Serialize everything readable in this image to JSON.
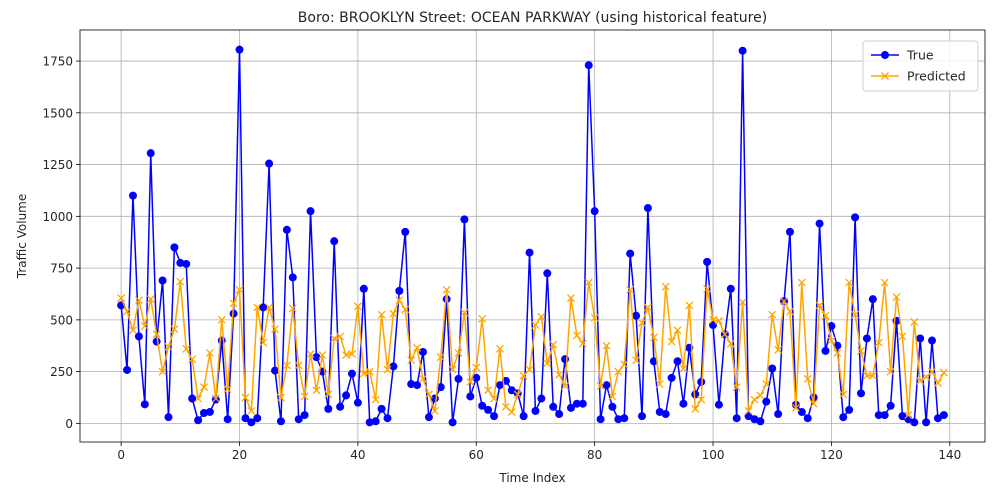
{
  "chart_data": {
    "type": "line",
    "title": "Boro: BROOKLYN Street: OCEAN PARKWAY (using historical feature)",
    "xlabel": "Time Index",
    "ylabel": "Traffic Volume",
    "xlim": [
      -6.95,
      145.95
    ],
    "ylim": [
      -90,
      1900
    ],
    "xticks": [
      0,
      20,
      40,
      60,
      80,
      100,
      120,
      140
    ],
    "yticks": [
      0,
      250,
      500,
      750,
      1000,
      1250,
      1500,
      1750
    ],
    "grid": true,
    "legend_position": "upper-right",
    "series": [
      {
        "name": "True",
        "color": "#0000ff",
        "marker": "circle",
        "values": [
          570,
          258,
          1100,
          420,
          92,
          1305,
          395,
          690,
          30,
          850,
          775,
          770,
          120,
          15,
          50,
          55,
          115,
          400,
          20,
          530,
          1805,
          25,
          5,
          25,
          560,
          1255,
          255,
          10,
          935,
          705,
          20,
          40,
          1025,
          320,
          250,
          70,
          880,
          80,
          135,
          240,
          100,
          650,
          5,
          10,
          70,
          25,
          275,
          640,
          925,
          190,
          185,
          345,
          30,
          120,
          175,
          600,
          5,
          215,
          985,
          130,
          220,
          85,
          65,
          35,
          185,
          205,
          160,
          145,
          35,
          825,
          60,
          120,
          725,
          80,
          45,
          310,
          75,
          95,
          95,
          1730,
          1025,
          20,
          185,
          80,
          20,
          25,
          820,
          520,
          35,
          1040,
          300,
          55,
          45,
          220,
          300,
          95,
          365,
          140,
          200,
          780,
          475,
          90,
          430,
          650,
          25,
          1800,
          35,
          20,
          10,
          105,
          265,
          45,
          590,
          925,
          90,
          55,
          25,
          125,
          965,
          350,
          470,
          375,
          30,
          65,
          995,
          145,
          410,
          600,
          40,
          40,
          85,
          495,
          35,
          20,
          5,
          410,
          5,
          400,
          25,
          40
        ]
      },
      {
        "name": "Predicted",
        "color": "#ffa500",
        "marker": "x",
        "values": [
          605,
          540,
          450,
          595,
          470,
          600,
          430,
          250,
          370,
          455,
          685,
          360,
          310,
          120,
          175,
          340,
          120,
          500,
          165,
          580,
          645,
          125,
          60,
          560,
          390,
          560,
          455,
          125,
          280,
          555,
          280,
          130,
          335,
          160,
          330,
          140,
          410,
          420,
          330,
          335,
          565,
          240,
          250,
          115,
          525,
          260,
          530,
          595,
          550,
          305,
          365,
          215,
          140,
          60,
          320,
          645,
          260,
          340,
          535,
          200,
          270,
          505,
          160,
          120,
          360,
          80,
          55,
          140,
          230,
          260,
          475,
          515,
          290,
          380,
          235,
          180,
          605,
          425,
          385,
          680,
          510,
          180,
          375,
          130,
          250,
          285,
          645,
          305,
          485,
          560,
          415,
          190,
          660,
          395,
          450,
          265,
          570,
          70,
          115,
          650,
          500,
          495,
          430,
          385,
          175,
          585,
          60,
          115,
          135,
          190,
          525,
          355,
          590,
          540,
          75,
          680,
          215,
          95,
          570,
          520,
          400,
          340,
          140,
          680,
          525,
          350,
          230,
          230,
          390,
          680,
          250,
          610,
          420,
          40,
          490,
          205,
          225,
          250,
          195,
          245
        ]
      }
    ]
  }
}
